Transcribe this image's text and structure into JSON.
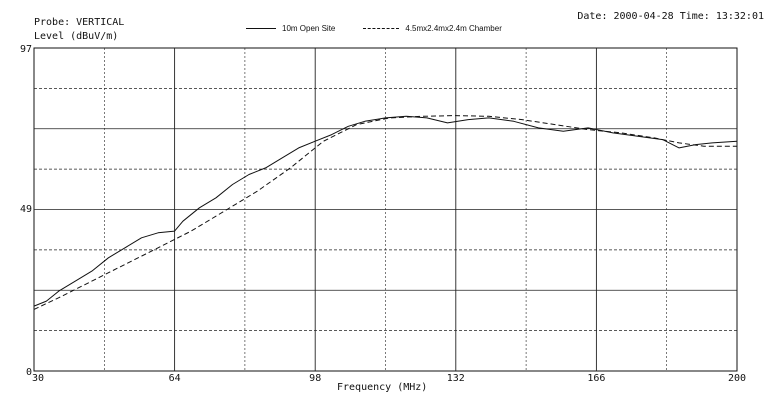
{
  "header": {
    "probe": "Probe: VERTICAL",
    "ylabel": "Level (dBuV/m)",
    "datetime": "Date: 2000-04-28  Time: 13:32:01"
  },
  "legend": {
    "series1": "10m Open Site",
    "series2": "4.5mx2.4mx2.4m Chamber"
  },
  "chart_data": {
    "type": "line",
    "title": "",
    "xlabel": "Frequency (MHz)",
    "ylabel": "Level (dBuV/m)",
    "xlim": [
      30,
      200
    ],
    "ylim": [
      0,
      97
    ],
    "xticks": [
      "30",
      "64",
      "98",
      "132",
      "166",
      "200"
    ],
    "yticks": [
      "0",
      "49",
      "97"
    ],
    "grid": true,
    "legend_position": "top",
    "series": [
      {
        "name": "10m Open Site",
        "style": "solid",
        "x": [
          30,
          33,
          36,
          40,
          44,
          48,
          52,
          56,
          60,
          64,
          66,
          70,
          74,
          78,
          82,
          86,
          90,
          94,
          98,
          102,
          106,
          110,
          115,
          120,
          125,
          130,
          135,
          140,
          146,
          152,
          158,
          164,
          170,
          176,
          182,
          186,
          190,
          194,
          200
        ],
        "y": [
          19.5,
          21,
          24,
          27,
          30,
          34,
          37,
          40,
          41.5,
          42,
          45,
          49,
          52,
          56,
          59,
          61,
          64,
          67,
          69,
          71,
          73.5,
          75,
          76,
          76.5,
          76,
          74.5,
          75.5,
          76,
          75,
          73,
          72,
          73,
          71.5,
          70.5,
          69.5,
          67,
          68,
          68.5,
          69
        ]
      },
      {
        "name": "4.5mx2.4mx2.4m Chamber",
        "style": "dashed",
        "x": [
          30,
          36,
          44,
          52,
          60,
          68,
          76,
          84,
          92,
          100,
          108,
          116,
          124,
          132,
          140,
          148,
          156,
          164,
          172,
          180,
          186,
          192,
          200
        ],
        "y": [
          18.5,
          22,
          27,
          32,
          37,
          42,
          48,
          54,
          61,
          69,
          74,
          76,
          76.5,
          76.7,
          76.5,
          75.5,
          74,
          72.5,
          71.5,
          70,
          68.5,
          67.5,
          67.5
        ]
      }
    ],
    "colors": {
      "line": "#111111",
      "grid": "#222222",
      "background": "#ffffff"
    }
  }
}
